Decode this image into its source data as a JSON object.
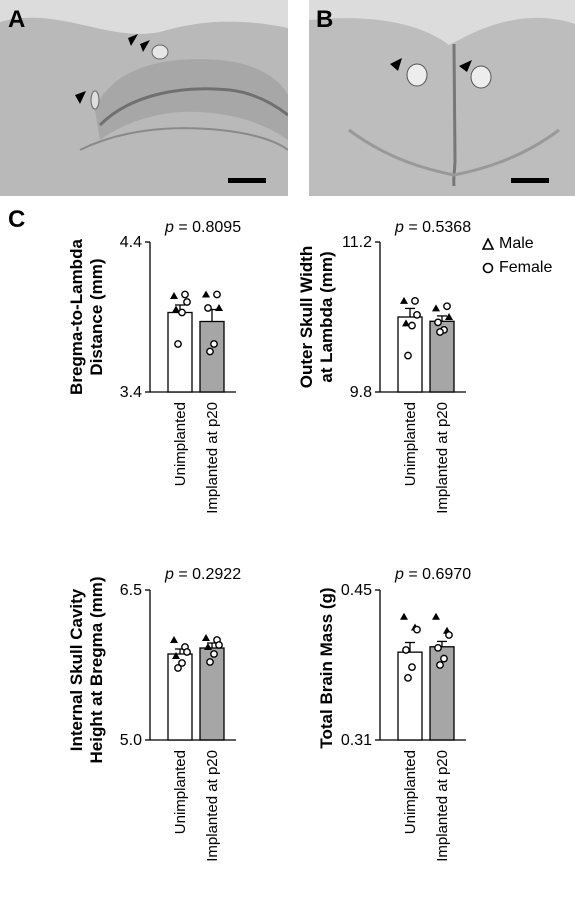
{
  "panels": {
    "a": {
      "letter": "A"
    },
    "b": {
      "letter": "B"
    },
    "c": {
      "letter": "C"
    }
  },
  "legend": {
    "male_label": "Male",
    "female_label": "Female"
  },
  "colors": {
    "unimplanted_bar": "#ffffff",
    "implanted_bar": "#a6a6a6",
    "outline": "#000000",
    "tissue": "#b8b8b8"
  },
  "chart_data": [
    {
      "type": "bar",
      "p_prefix": "p",
      "p_value": "= 0.8095",
      "ylabel_line1": "Bregma-to-Lambda",
      "ylabel_line2": "Distance (mm)",
      "ylim": [
        3.4,
        4.4
      ],
      "y_ticks": [
        "4.4",
        "3.4"
      ],
      "categories": [
        "Unimplanted",
        "Implanted at p20"
      ],
      "values": [
        3.93,
        3.87
      ],
      "errors": [
        0.05,
        0.08
      ],
      "points": [
        {
          "group": 0,
          "sex": "male",
          "y": 4.04
        },
        {
          "group": 0,
          "sex": "female",
          "y": 4.05
        },
        {
          "group": 0,
          "sex": "female",
          "y": 4.0
        },
        {
          "group": 0,
          "sex": "male",
          "y": 3.95
        },
        {
          "group": 0,
          "sex": "female",
          "y": 3.93
        },
        {
          "group": 0,
          "sex": "female",
          "y": 3.72
        },
        {
          "group": 1,
          "sex": "male",
          "y": 4.05
        },
        {
          "group": 1,
          "sex": "female",
          "y": 4.05
        },
        {
          "group": 1,
          "sex": "male",
          "y": 3.96
        },
        {
          "group": 1,
          "sex": "female",
          "y": 3.96
        },
        {
          "group": 1,
          "sex": "female",
          "y": 3.72
        },
        {
          "group": 1,
          "sex": "female",
          "y": 3.67
        }
      ]
    },
    {
      "type": "bar",
      "p_prefix": "p",
      "p_value": "= 0.5368",
      "ylabel_line1": "Outer Skull Width",
      "ylabel_line2": "at Lambda (mm)",
      "ylim": [
        9.8,
        11.2
      ],
      "y_ticks": [
        "11.2",
        "9.8"
      ],
      "categories": [
        "Unimplanted",
        "Implanted at p20"
      ],
      "values": [
        10.5,
        10.46
      ],
      "errors": [
        0.08,
        0.05
      ],
      "points": [
        {
          "group": 0,
          "sex": "male",
          "y": 10.65
        },
        {
          "group": 0,
          "sex": "female",
          "y": 10.65
        },
        {
          "group": 0,
          "sex": "female",
          "y": 10.52
        },
        {
          "group": 0,
          "sex": "male",
          "y": 10.44
        },
        {
          "group": 0,
          "sex": "female",
          "y": 10.42
        },
        {
          "group": 0,
          "sex": "female",
          "y": 10.14
        },
        {
          "group": 1,
          "sex": "male",
          "y": 10.58
        },
        {
          "group": 1,
          "sex": "female",
          "y": 10.6
        },
        {
          "group": 1,
          "sex": "male",
          "y": 10.5
        },
        {
          "group": 1,
          "sex": "female",
          "y": 10.45
        },
        {
          "group": 1,
          "sex": "female",
          "y": 10.38
        },
        {
          "group": 1,
          "sex": "female",
          "y": 10.36
        }
      ]
    },
    {
      "type": "bar",
      "p_prefix": "p",
      "p_value": "= 0.2922",
      "ylabel_line1": "Internal Skull Cavity",
      "ylabel_line2": "Height at Bregma (mm)",
      "ylim": [
        5.0,
        6.5
      ],
      "y_ticks": [
        "6.5",
        "5.0"
      ],
      "categories": [
        "Unimplanted",
        "Implanted at p20"
      ],
      "values": [
        5.86,
        5.92
      ],
      "errors": [
        0.05,
        0.05
      ],
      "points": [
        {
          "group": 0,
          "sex": "male",
          "y": 6.0
        },
        {
          "group": 0,
          "sex": "female",
          "y": 5.93
        },
        {
          "group": 0,
          "sex": "female",
          "y": 5.88
        },
        {
          "group": 0,
          "sex": "male",
          "y": 5.84
        },
        {
          "group": 0,
          "sex": "female",
          "y": 5.77
        },
        {
          "group": 0,
          "sex": "female",
          "y": 5.72
        },
        {
          "group": 1,
          "sex": "male",
          "y": 6.02
        },
        {
          "group": 1,
          "sex": "female",
          "y": 6.0
        },
        {
          "group": 1,
          "sex": "female",
          "y": 5.95
        },
        {
          "group": 1,
          "sex": "male",
          "y": 5.93
        },
        {
          "group": 1,
          "sex": "female",
          "y": 5.86
        },
        {
          "group": 1,
          "sex": "female",
          "y": 5.78
        }
      ]
    },
    {
      "type": "bar",
      "p_prefix": "p",
      "p_value": "= 0.6970",
      "ylabel_line1": "Total Brain Mass (g)",
      "ylabel_line2": "",
      "ylim": [
        0.31,
        0.45
      ],
      "y_ticks": [
        "0.45",
        "0.31"
      ],
      "categories": [
        "Unimplanted",
        "Implanted at p20"
      ],
      "values": [
        0.392,
        0.397
      ],
      "errors": [
        0.009,
        0.005
      ],
      "points": [
        {
          "group": 0,
          "sex": "male",
          "y": 0.425
        },
        {
          "group": 0,
          "sex": "male",
          "y": 0.415
        },
        {
          "group": 0,
          "sex": "female",
          "y": 0.413
        },
        {
          "group": 0,
          "sex": "female",
          "y": 0.394
        },
        {
          "group": 0,
          "sex": "female",
          "y": 0.378
        },
        {
          "group": 0,
          "sex": "female",
          "y": 0.368
        },
        {
          "group": 1,
          "sex": "male",
          "y": 0.425
        },
        {
          "group": 1,
          "sex": "male",
          "y": 0.412
        },
        {
          "group": 1,
          "sex": "female",
          "y": 0.408
        },
        {
          "group": 1,
          "sex": "female",
          "y": 0.396
        },
        {
          "group": 1,
          "sex": "female",
          "y": 0.386
        },
        {
          "group": 1,
          "sex": "female",
          "y": 0.38
        }
      ]
    }
  ]
}
